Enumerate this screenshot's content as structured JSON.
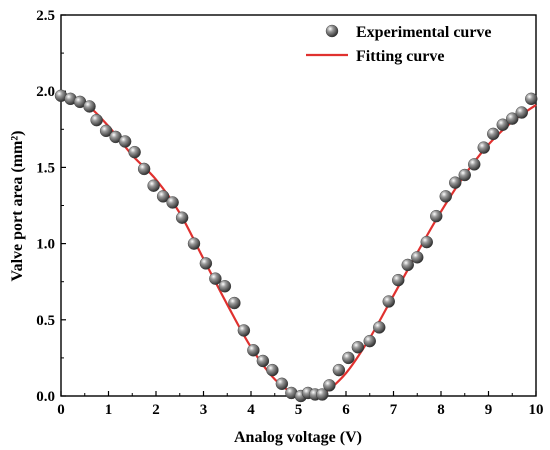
{
  "chart_data": {
    "type": "scatter",
    "xlabel": "Analog voltage (V)",
    "ylabel": "Valve port area (mm²)",
    "xlim": [
      0,
      10
    ],
    "ylim": [
      0.0,
      2.5
    ],
    "x_ticks": [
      "0",
      "1",
      "2",
      "3",
      "4",
      "5",
      "6",
      "7",
      "8",
      "9",
      "10"
    ],
    "y_ticks": [
      "0.0",
      "0.5",
      "1.0",
      "1.5",
      "2.0",
      "2.5"
    ],
    "grid": false,
    "legend_position": "top-right",
    "series": [
      {
        "name": "Experimental curve",
        "kind": "scatter",
        "color": "#5a5a5a",
        "points": [
          [
            0.0,
            1.97
          ],
          [
            0.2,
            1.95
          ],
          [
            0.4,
            1.93
          ],
          [
            0.6,
            1.9
          ],
          [
            0.75,
            1.81
          ],
          [
            0.95,
            1.74
          ],
          [
            1.15,
            1.7
          ],
          [
            1.35,
            1.67
          ],
          [
            1.55,
            1.6
          ],
          [
            1.75,
            1.49
          ],
          [
            1.95,
            1.38
          ],
          [
            2.15,
            1.31
          ],
          [
            2.35,
            1.27
          ],
          [
            2.55,
            1.17
          ],
          [
            2.8,
            1.0
          ],
          [
            3.05,
            0.87
          ],
          [
            3.25,
            0.77
          ],
          [
            3.45,
            0.72
          ],
          [
            3.65,
            0.61
          ],
          [
            3.85,
            0.43
          ],
          [
            4.05,
            0.3
          ],
          [
            4.25,
            0.23
          ],
          [
            4.45,
            0.17
          ],
          [
            4.65,
            0.08
          ],
          [
            4.85,
            0.02
          ],
          [
            5.05,
            0.0
          ],
          [
            5.2,
            0.02
          ],
          [
            5.35,
            0.01
          ],
          [
            5.5,
            0.01
          ],
          [
            5.65,
            0.07
          ],
          [
            5.85,
            0.17
          ],
          [
            6.05,
            0.25
          ],
          [
            6.25,
            0.32
          ],
          [
            6.5,
            0.36
          ],
          [
            6.7,
            0.45
          ],
          [
            6.9,
            0.62
          ],
          [
            7.1,
            0.76
          ],
          [
            7.3,
            0.86
          ],
          [
            7.5,
            0.91
          ],
          [
            7.7,
            1.01
          ],
          [
            7.9,
            1.18
          ],
          [
            8.1,
            1.31
          ],
          [
            8.3,
            1.4
          ],
          [
            8.5,
            1.45
          ],
          [
            8.7,
            1.52
          ],
          [
            8.9,
            1.63
          ],
          [
            9.1,
            1.72
          ],
          [
            9.3,
            1.78
          ],
          [
            9.5,
            1.82
          ],
          [
            9.7,
            1.86
          ],
          [
            9.9,
            1.95
          ]
        ]
      },
      {
        "name": "Fitting curve",
        "kind": "line",
        "color": "#e0312f",
        "points": [
          [
            0.0,
            1.97
          ],
          [
            0.5,
            1.92
          ],
          [
            1.0,
            1.77
          ],
          [
            1.5,
            1.58
          ],
          [
            2.0,
            1.42
          ],
          [
            2.5,
            1.2
          ],
          [
            3.0,
            0.9
          ],
          [
            3.5,
            0.6
          ],
          [
            4.0,
            0.32
          ],
          [
            4.5,
            0.11
          ],
          [
            5.0,
            0.0
          ],
          [
            5.3,
            0.0
          ],
          [
            5.5,
            0.01
          ],
          [
            6.0,
            0.15
          ],
          [
            6.5,
            0.38
          ],
          [
            7.0,
            0.66
          ],
          [
            7.5,
            0.94
          ],
          [
            8.0,
            1.21
          ],
          [
            8.5,
            1.45
          ],
          [
            9.0,
            1.65
          ],
          [
            9.5,
            1.8
          ],
          [
            10.0,
            1.91
          ]
        ]
      }
    ]
  }
}
